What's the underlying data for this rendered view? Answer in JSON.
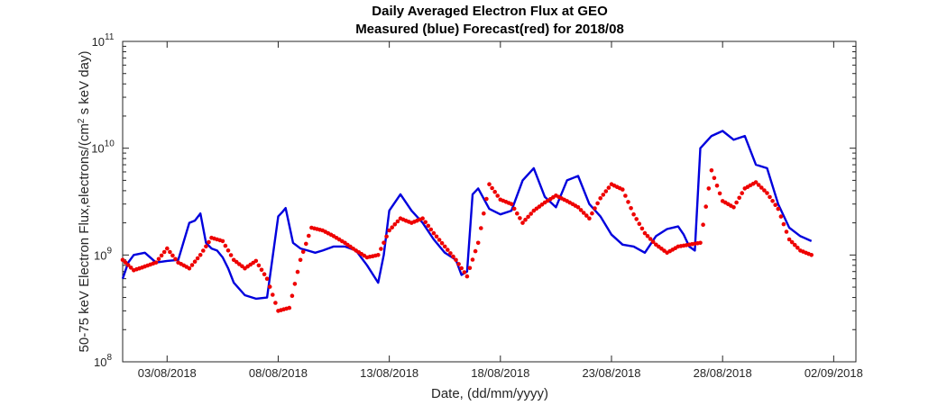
{
  "chart_data": {
    "type": "line",
    "title": "Daily Averaged Electron Flux at GEO",
    "subtitle": "Measured (blue) Forecast(red) for 2018/08",
    "xlabel": "Date, (dd/mm/yyyy)",
    "ylabel_parts": [
      "50-75 keV Electron Flux,electrons/(cm",
      "2",
      " s keV day)"
    ],
    "xlim": [
      "2018-08-01",
      "2018-09-03"
    ],
    "ylim": [
      100000000.0,
      100000000000.0
    ],
    "yscale": "log",
    "x_ticks": [
      "03/08/2018",
      "08/08/2018",
      "13/08/2018",
      "18/08/2018",
      "23/08/2018",
      "28/08/2018",
      "02/09/2018"
    ],
    "x_tick_dates": [
      "2018-08-03",
      "2018-08-08",
      "2018-08-13",
      "2018-08-18",
      "2018-08-23",
      "2018-08-28",
      "2018-09-02"
    ],
    "y_ticks": [
      {
        "value": 100000000.0,
        "base": "10",
        "exp": "8"
      },
      {
        "value": 1000000000.0,
        "base": "10",
        "exp": "9"
      },
      {
        "value": 10000000000.0,
        "base": "10",
        "exp": "10"
      },
      {
        "value": 100000000000.0,
        "base": "10",
        "exp": "11"
      }
    ],
    "grid": false,
    "series": [
      {
        "color": "#0000dd",
        "style": "line",
        "x": [
          "2018-08-01 00:00",
          "2018-08-01 06:00",
          "2018-08-01 12:00",
          "2018-08-02 00:00",
          "2018-08-02 12:00",
          "2018-08-03 00:00",
          "2018-08-03 12:00",
          "2018-08-04 00:00",
          "2018-08-04 06:00",
          "2018-08-04 12:00",
          "2018-08-04 18:00",
          "2018-08-05 00:00",
          "2018-08-05 06:00",
          "2018-08-05 12:00",
          "2018-08-05 18:00",
          "2018-08-06 00:00",
          "2018-08-06 12:00",
          "2018-08-07 00:00",
          "2018-08-07 12:00",
          "2018-08-08 00:00",
          "2018-08-08 04:00",
          "2018-08-08 08:00",
          "2018-08-08 16:00",
          "2018-08-09 00:00",
          "2018-08-09 08:00",
          "2018-08-09 16:00",
          "2018-08-10 00:00",
          "2018-08-10 12:00",
          "2018-08-11 00:00",
          "2018-08-11 12:00",
          "2018-08-12 00:00",
          "2018-08-12 12:00",
          "2018-08-12 18:00",
          "2018-08-13 00:00",
          "2018-08-13 12:00",
          "2018-08-14 00:00",
          "2018-08-14 12:00",
          "2018-08-15 00:00",
          "2018-08-15 12:00",
          "2018-08-16 00:00",
          "2018-08-16 06:00",
          "2018-08-16 12:00",
          "2018-08-16 18:00",
          "2018-08-17 00:00",
          "2018-08-17 12:00",
          "2018-08-18 00:00",
          "2018-08-18 12:00",
          "2018-08-19 00:00",
          "2018-08-19 12:00",
          "2018-08-20 00:00",
          "2018-08-20 12:00",
          "2018-08-21 00:00",
          "2018-08-21 12:00",
          "2018-08-22 00:00",
          "2018-08-22 12:00",
          "2018-08-23 00:00",
          "2018-08-23 12:00",
          "2018-08-24 00:00",
          "2018-08-24 12:00",
          "2018-08-25 00:00",
          "2018-08-25 12:00",
          "2018-08-26 00:00",
          "2018-08-26 06:00",
          "2018-08-26 12:00",
          "2018-08-26 18:00",
          "2018-08-27 00:00",
          "2018-08-27 12:00",
          "2018-08-28 00:00",
          "2018-08-28 12:00",
          "2018-08-29 00:00",
          "2018-08-29 12:00",
          "2018-08-30 00:00",
          "2018-08-30 12:00",
          "2018-08-31 00:00",
          "2018-08-31 12:00",
          "2018-09-01 00:00"
        ],
        "y": [
          600000000.0,
          850000000.0,
          1000000000.0,
          1050000000.0,
          850000000.0,
          880000000.0,
          900000000.0,
          2000000000.0,
          2100000000.0,
          2450000000.0,
          1300000000.0,
          1150000000.0,
          1100000000.0,
          950000000.0,
          750000000.0,
          550000000.0,
          420000000.0,
          390000000.0,
          400000000.0,
          2300000000.0,
          2500000000.0,
          2750000000.0,
          1300000000.0,
          1150000000.0,
          1100000000.0,
          1050000000.0,
          1100000000.0,
          1200000000.0,
          1200000000.0,
          1100000000.0,
          800000000.0,
          550000000.0,
          1000000000.0,
          2600000000.0,
          3700000000.0,
          2600000000.0,
          2000000000.0,
          1400000000.0,
          1050000000.0,
          900000000.0,
          650000000.0,
          700000000.0,
          3700000000.0,
          4200000000.0,
          2700000000.0,
          2400000000.0,
          2600000000.0,
          5000000000.0,
          6500000000.0,
          3500000000.0,
          2800000000.0,
          5000000000.0,
          5500000000.0,
          3000000000.0,
          2300000000.0,
          1550000000.0,
          1250000000.0,
          1200000000.0,
          1050000000.0,
          1500000000.0,
          1750000000.0,
          1850000000.0,
          1550000000.0,
          1200000000.0,
          1100000000.0,
          10000000000.0,
          13000000000.0,
          14500000000.0,
          12000000000.0,
          13000000000.0,
          7000000000.0,
          6500000000.0,
          3000000000.0,
          1800000000.0,
          1500000000.0,
          1350000000.0
        ]
      },
      {
        "color": "#ee0000",
        "style": "dots",
        "x": [
          "2018-08-01 00:00",
          "2018-08-01 12:00",
          "2018-08-02 00:00",
          "2018-08-02 12:00",
          "2018-08-03 00:00",
          "2018-08-03 12:00",
          "2018-08-04 00:00",
          "2018-08-04 12:00",
          "2018-08-05 00:00",
          "2018-08-05 12:00",
          "2018-08-06 00:00",
          "2018-08-06 12:00",
          "2018-08-07 00:00",
          "2018-08-07 12:00",
          "2018-08-08 00:00",
          "2018-08-08 12:00",
          "2018-08-09 00:00",
          "2018-08-09 12:00",
          "2018-08-10 00:00",
          "2018-08-10 12:00",
          "2018-08-11 00:00",
          "2018-08-11 12:00",
          "2018-08-12 00:00",
          "2018-08-12 12:00",
          "2018-08-13 00:00",
          "2018-08-13 12:00",
          "2018-08-14 00:00",
          "2018-08-14 12:00",
          "2018-08-15 00:00",
          "2018-08-15 12:00",
          "2018-08-16 00:00",
          "2018-08-16 12:00",
          "2018-08-17 00:00",
          "2018-08-17 12:00",
          "2018-08-18 00:00",
          "2018-08-18 12:00",
          "2018-08-19 00:00",
          "2018-08-19 12:00",
          "2018-08-20 00:00",
          "2018-08-20 12:00",
          "2018-08-21 00:00",
          "2018-08-21 12:00",
          "2018-08-22 00:00",
          "2018-08-22 12:00",
          "2018-08-23 00:00",
          "2018-08-23 12:00",
          "2018-08-24 00:00",
          "2018-08-24 12:00",
          "2018-08-25 00:00",
          "2018-08-25 12:00",
          "2018-08-26 00:00",
          "2018-08-26 12:00",
          "2018-08-27 00:00",
          "2018-08-27 12:00",
          "2018-08-28 00:00",
          "2018-08-28 12:00",
          "2018-08-29 00:00",
          "2018-08-29 12:00",
          "2018-08-30 00:00",
          "2018-08-30 12:00",
          "2018-08-31 00:00",
          "2018-08-31 12:00",
          "2018-09-01 00:00"
        ],
        "y": [
          900000000.0,
          720000000.0,
          780000000.0,
          850000000.0,
          1150000000.0,
          850000000.0,
          750000000.0,
          1000000000.0,
          1450000000.0,
          1350000000.0,
          900000000.0,
          750000000.0,
          880000000.0,
          600000000.0,
          300000000.0,
          320000000.0,
          900000000.0,
          1800000000.0,
          1700000000.0,
          1500000000.0,
          1300000000.0,
          1100000000.0,
          950000000.0,
          1000000000.0,
          1700000000.0,
          2200000000.0,
          2000000000.0,
          2200000000.0,
          1600000000.0,
          1200000000.0,
          900000000.0,
          630000000.0,
          1300000000.0,
          4600000000.0,
          3300000000.0,
          3000000000.0,
          2000000000.0,
          2600000000.0,
          3100000000.0,
          3600000000.0,
          3200000000.0,
          2800000000.0,
          2200000000.0,
          3400000000.0,
          4600000000.0,
          4100000000.0,
          2400000000.0,
          1600000000.0,
          1250000000.0,
          1050000000.0,
          1200000000.0,
          1250000000.0,
          1300000000.0,
          6200000000.0,
          3200000000.0,
          2800000000.0,
          4200000000.0,
          4800000000.0,
          3800000000.0,
          2700000000.0,
          1400000000.0,
          1100000000.0,
          1000000000.0
        ]
      }
    ]
  }
}
